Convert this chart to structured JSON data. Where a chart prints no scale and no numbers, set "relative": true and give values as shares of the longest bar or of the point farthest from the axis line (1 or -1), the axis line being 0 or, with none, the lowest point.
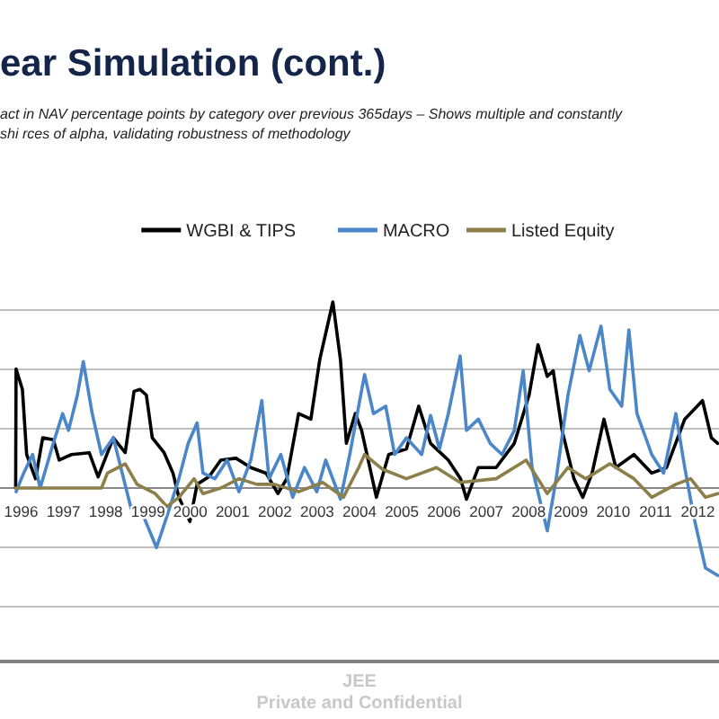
{
  "chart_data": {
    "type": "line",
    "title": "ear Simulation (cont.)",
    "subtitle": "act  in NAV percentage points by category over previous 365days – Shows multiple and constantly shi rces of alpha, validating robustness of methodology",
    "relative": true,
    "grid": "y",
    "legend": "top",
    "line_style": "solid",
    "marker": "none",
    "xlim": [
      1995.5,
      2012.5
    ],
    "xticks": [
      1996,
      1997,
      1998,
      1999,
      2000,
      2001,
      2002,
      2003,
      2004,
      2005,
      2006,
      2007,
      2008,
      2009,
      2010,
      2011,
      2012
    ],
    "annotations": [
      "JEE",
      "Private and Confidential"
    ],
    "series": [
      {
        "name": "WGBI & TIPS",
        "color": "#000000",
        "x": [
          1995.87,
          1995.88,
          1996.03,
          1996.13,
          1996.34,
          1996.51,
          1996.76,
          1996.9,
          1997.19,
          1997.61,
          1997.82,
          1998.18,
          1998.46,
          1998.67,
          1998.81,
          1998.96,
          1999.1,
          1999.38,
          1999.59,
          1999.73,
          1999.99,
          2000.16,
          2000.44,
          2000.72,
          2001.08,
          2001.43,
          2001.79,
          2002.07,
          2002.28,
          2002.56,
          2002.85,
          2003.06,
          2003.37,
          2003.55,
          2003.69,
          2003.9,
          2004.05,
          2004.4,
          2004.69,
          2005.11,
          2005.4,
          2005.68,
          2006.1,
          2006.39,
          2006.53,
          2006.81,
          2007.23,
          2007.66,
          2008.01,
          2008.22,
          2008.44,
          2008.58,
          2008.79,
          2009.07,
          2009.28,
          2009.5,
          2009.78,
          2010.06,
          2010.49,
          2010.91,
          2011.26,
          2011.69,
          2012.11,
          2012.32,
          2012.47
        ],
        "values": [
          0,
          0.64,
          0.53,
          0.18,
          0.05,
          0.27,
          0.26,
          0.15,
          0.18,
          0.19,
          0.06,
          0.27,
          0.19,
          0.52,
          0.53,
          0.5,
          0.27,
          0.19,
          0.08,
          -0.05,
          -0.18,
          0.02,
          0.06,
          0.15,
          0.16,
          0.11,
          0.08,
          -0.03,
          0.05,
          0.4,
          0.37,
          0.69,
          1,
          0.69,
          0.24,
          0.4,
          0.31,
          -0.05,
          0.18,
          0.21,
          0.44,
          0.24,
          0.15,
          0.05,
          -0.06,
          0.11,
          0.11,
          0.24,
          0.5,
          0.77,
          0.6,
          0.63,
          0.31,
          0.05,
          -0.05,
          0.08,
          0.37,
          0.11,
          0.18,
          0.08,
          0.11,
          0.37,
          0.47,
          0.27,
          0.24
        ]
      },
      {
        "name": "MACRO",
        "color": "#4a86c8",
        "x": [
          1995.88,
          1996.06,
          1996.27,
          1996.45,
          1996.76,
          1996.98,
          1997.12,
          1997.33,
          1997.47,
          1997.68,
          1997.9,
          1998.18,
          1998.39,
          1998.6,
          1998.89,
          1999.2,
          1999.45,
          1999.73,
          1999.95,
          2000.16,
          2000.3,
          2000.58,
          2000.87,
          2001.15,
          2001.43,
          2001.69,
          2001.86,
          2002.14,
          2002.42,
          2002.7,
          2002.99,
          2003.2,
          2003.55,
          2003.77,
          2003.98,
          2004.12,
          2004.33,
          2004.62,
          2004.83,
          2005.11,
          2005.47,
          2005.68,
          2005.89,
          2006.1,
          2006.38,
          2006.53,
          2006.81,
          2007.09,
          2007.37,
          2007.66,
          2007.87,
          2008.08,
          2008.44,
          2008.65,
          2008.93,
          2009.21,
          2009.43,
          2009.71,
          2009.92,
          2010.2,
          2010.37,
          2010.56,
          2010.91,
          2011.19,
          2011.48,
          2011.69,
          2011.9,
          2012.18,
          2012.47
        ],
        "values": [
          -0.02,
          0.08,
          0.18,
          0,
          0.24,
          0.4,
          0.31,
          0.5,
          0.68,
          0.4,
          0.18,
          0.27,
          0.08,
          -0.11,
          -0.15,
          -0.32,
          -0.15,
          0.05,
          0.24,
          0.35,
          0.08,
          0.05,
          0.15,
          -0.02,
          0.15,
          0.47,
          0.05,
          0.18,
          -0.05,
          0.11,
          -0.02,
          0.15,
          -0.06,
          0.18,
          0.44,
          0.61,
          0.4,
          0.44,
          0.18,
          0.27,
          0.18,
          0.39,
          0.21,
          0.4,
          0.71,
          0.31,
          0.37,
          0.24,
          0.18,
          0.31,
          0.63,
          0.11,
          -0.23,
          0.05,
          0.5,
          0.82,
          0.63,
          0.87,
          0.53,
          0.44,
          0.85,
          0.4,
          0.18,
          0.08,
          0.4,
          0.11,
          -0.15,
          -0.43,
          -0.47
        ]
      },
      {
        "name": "Listed Equity",
        "color": "#8c7f4a",
        "x": [
          1995.87,
          1997.9,
          1998.04,
          1998.46,
          1998.74,
          1999.17,
          1999.45,
          1999.73,
          2000.09,
          2000.3,
          2000.72,
          2001.15,
          2001.57,
          2001.99,
          2002.56,
          2003.13,
          2003.62,
          2003.98,
          2004.12,
          2004.55,
          2005.11,
          2005.82,
          2006.38,
          2007.23,
          2007.94,
          2008.44,
          2008.93,
          2009.35,
          2009.92,
          2010.49,
          2010.91,
          2011.48,
          2011.83,
          2012.18,
          2012.47
        ],
        "values": [
          0,
          0,
          0.08,
          0.13,
          0.02,
          -0.03,
          -0.1,
          -0.05,
          0.05,
          -0.03,
          0,
          0.05,
          0.02,
          0.02,
          -0.02,
          0.03,
          -0.05,
          0.11,
          0.18,
          0.1,
          0.05,
          0.11,
          0.03,
          0.05,
          0.15,
          -0.03,
          0.11,
          0.05,
          0.13,
          0.05,
          -0.05,
          0.02,
          0.05,
          -0.05,
          -0.03
        ]
      }
    ]
  }
}
